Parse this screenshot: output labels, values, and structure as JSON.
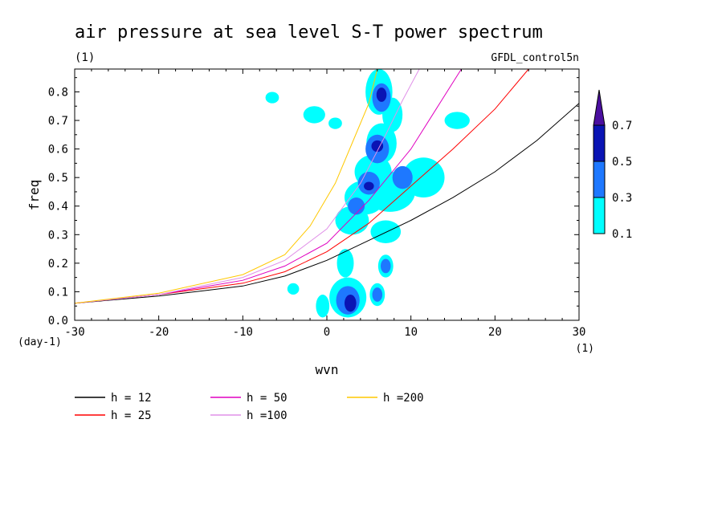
{
  "chart_data": {
    "type": "contour",
    "title": "air pressure at sea level S-T power spectrum",
    "units_label": "(1)",
    "model_label": "GFDL_control5n",
    "xlabel": "wvn",
    "x_units": "(1)",
    "ylabel": "freq",
    "y_units": "(day-1)",
    "xlim": [
      -30,
      30
    ],
    "ylim": [
      0,
      0.88
    ],
    "x_ticks": [
      -30,
      -20,
      -10,
      0,
      10,
      20,
      30
    ],
    "x_tick_labels": [
      "-30",
      "-20",
      "-10",
      "0",
      "10",
      "20",
      "30"
    ],
    "y_ticks": [
      0,
      0.1,
      0.2,
      0.3,
      0.4,
      0.5,
      0.6,
      0.7,
      0.8
    ],
    "y_tick_labels": [
      "0.0",
      "0.1",
      "0.2",
      "0.3",
      "0.4",
      "0.5",
      "0.6",
      "0.7",
      "0.8"
    ],
    "colorbar": {
      "levels": [
        0.1,
        0.3,
        0.5,
        0.7
      ],
      "level_labels": [
        "0.1",
        "0.3",
        "0.5",
        "0.7"
      ],
      "colors": [
        "#00ffff",
        "#1e78ff",
        "#0a14b4",
        "#4b0fa0"
      ]
    },
    "dispersion_curves": [
      {
        "name": "h = 12",
        "color": "#000000",
        "points": [
          [
            -30,
            0.06
          ],
          [
            -20,
            0.085
          ],
          [
            -10,
            0.12
          ],
          [
            -5,
            0.155
          ],
          [
            0,
            0.21
          ],
          [
            5,
            0.28
          ],
          [
            10,
            0.35
          ],
          [
            15,
            0.43
          ],
          [
            20,
            0.52
          ],
          [
            25,
            0.63
          ],
          [
            30,
            0.76
          ]
        ]
      },
      {
        "name": "h = 25",
        "color": "#ff0000",
        "points": [
          [
            -30,
            0.06
          ],
          [
            -20,
            0.09
          ],
          [
            -10,
            0.13
          ],
          [
            -5,
            0.17
          ],
          [
            0,
            0.24
          ],
          [
            5,
            0.34
          ],
          [
            10,
            0.47
          ],
          [
            15,
            0.6
          ],
          [
            20,
            0.74
          ],
          [
            24,
            0.88
          ]
        ]
      },
      {
        "name": "h = 50",
        "color": "#e000c0",
        "points": [
          [
            -30,
            0.06
          ],
          [
            -20,
            0.09
          ],
          [
            -10,
            0.14
          ],
          [
            -5,
            0.19
          ],
          [
            0,
            0.27
          ],
          [
            5,
            0.42
          ],
          [
            10,
            0.6
          ],
          [
            13,
            0.74
          ],
          [
            16,
            0.88
          ]
        ]
      },
      {
        "name": "h =100",
        "color": "#e090e8",
        "points": [
          [
            -30,
            0.06
          ],
          [
            -20,
            0.09
          ],
          [
            -10,
            0.15
          ],
          [
            -5,
            0.21
          ],
          [
            0,
            0.32
          ],
          [
            4,
            0.48
          ],
          [
            7,
            0.65
          ],
          [
            9,
            0.77
          ],
          [
            11,
            0.88
          ]
        ]
      },
      {
        "name": "h =200",
        "color": "#ffc800",
        "points": [
          [
            -30,
            0.06
          ],
          [
            -20,
            0.095
          ],
          [
            -10,
            0.16
          ],
          [
            -5,
            0.23
          ],
          [
            -2,
            0.33
          ],
          [
            1,
            0.48
          ],
          [
            3,
            0.62
          ],
          [
            5,
            0.76
          ],
          [
            6,
            0.88
          ]
        ]
      }
    ],
    "contour_blobs": [
      {
        "x": 6.2,
        "y": 0.8,
        "rx": 1.6,
        "ry": 0.08,
        "level": 0
      },
      {
        "x": 7.8,
        "y": 0.72,
        "rx": 1.2,
        "ry": 0.06,
        "level": 0
      },
      {
        "x": 6.5,
        "y": 0.62,
        "rx": 1.8,
        "ry": 0.07,
        "level": 0
      },
      {
        "x": 5.5,
        "y": 0.52,
        "rx": 2.2,
        "ry": 0.06,
        "level": 0
      },
      {
        "x": 4.5,
        "y": 0.43,
        "rx": 2.4,
        "ry": 0.06,
        "level": 0
      },
      {
        "x": 7.5,
        "y": 0.45,
        "rx": 3.0,
        "ry": 0.07,
        "level": 0
      },
      {
        "x": 11.5,
        "y": 0.5,
        "rx": 2.5,
        "ry": 0.07,
        "level": 0
      },
      {
        "x": 3.0,
        "y": 0.35,
        "rx": 2.0,
        "ry": 0.05,
        "level": 0
      },
      {
        "x": 7.0,
        "y": 0.31,
        "rx": 1.8,
        "ry": 0.04,
        "level": 0
      },
      {
        "x": 2.2,
        "y": 0.2,
        "rx": 1.0,
        "ry": 0.05,
        "level": 0
      },
      {
        "x": 7.0,
        "y": 0.19,
        "rx": 0.9,
        "ry": 0.04,
        "level": 0
      },
      {
        "x": 2.5,
        "y": 0.08,
        "rx": 2.2,
        "ry": 0.07,
        "level": 0
      },
      {
        "x": 6.0,
        "y": 0.09,
        "rx": 0.9,
        "ry": 0.04,
        "level": 0
      },
      {
        "x": -0.5,
        "y": 0.05,
        "rx": 0.8,
        "ry": 0.04,
        "level": 0
      },
      {
        "x": -4.0,
        "y": 0.11,
        "rx": 0.7,
        "ry": 0.02,
        "level": 0
      },
      {
        "x": -1.5,
        "y": 0.72,
        "rx": 1.3,
        "ry": 0.03,
        "level": 0
      },
      {
        "x": 15.5,
        "y": 0.7,
        "rx": 1.5,
        "ry": 0.03,
        "level": 0
      },
      {
        "x": -6.5,
        "y": 0.78,
        "rx": 0.8,
        "ry": 0.02,
        "level": 0
      },
      {
        "x": 1.0,
        "y": 0.69,
        "rx": 0.8,
        "ry": 0.02,
        "level": 0
      },
      {
        "x": 6.5,
        "y": 0.78,
        "rx": 1.1,
        "ry": 0.05,
        "level": 1
      },
      {
        "x": 6.0,
        "y": 0.6,
        "rx": 1.4,
        "ry": 0.05,
        "level": 1
      },
      {
        "x": 5.0,
        "y": 0.48,
        "rx": 1.3,
        "ry": 0.04,
        "level": 1
      },
      {
        "x": 9.0,
        "y": 0.5,
        "rx": 1.2,
        "ry": 0.04,
        "level": 1
      },
      {
        "x": 3.5,
        "y": 0.4,
        "rx": 1.0,
        "ry": 0.03,
        "level": 1
      },
      {
        "x": 2.5,
        "y": 0.07,
        "rx": 1.4,
        "ry": 0.05,
        "level": 1
      },
      {
        "x": 6.0,
        "y": 0.09,
        "rx": 0.6,
        "ry": 0.025,
        "level": 1
      },
      {
        "x": 7.0,
        "y": 0.19,
        "rx": 0.6,
        "ry": 0.025,
        "level": 1
      },
      {
        "x": 6.5,
        "y": 0.79,
        "rx": 0.6,
        "ry": 0.025,
        "level": 2
      },
      {
        "x": 6.0,
        "y": 0.61,
        "rx": 0.7,
        "ry": 0.02,
        "level": 2
      },
      {
        "x": 2.8,
        "y": 0.06,
        "rx": 0.7,
        "ry": 0.03,
        "level": 2
      },
      {
        "x": 5.0,
        "y": 0.47,
        "rx": 0.6,
        "ry": 0.015,
        "level": 2
      }
    ]
  }
}
